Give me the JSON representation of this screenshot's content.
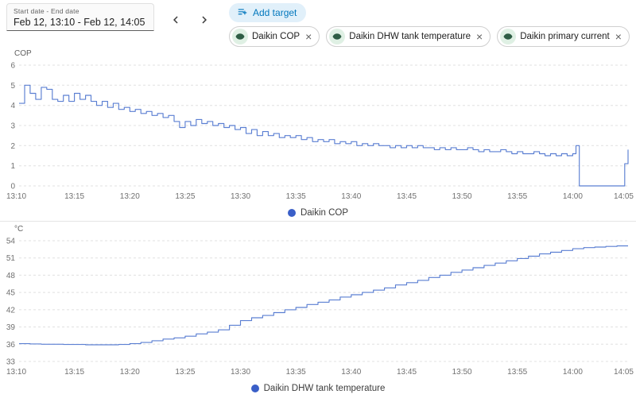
{
  "header": {
    "date_label": "Start date - End date",
    "date_value": "Feb 12, 13:10 - Feb 12, 14:05",
    "add_target_label": "Add target",
    "chips": [
      {
        "label": "Daikin COP"
      },
      {
        "label": "Daikin DHW tank temperature"
      },
      {
        "label": "Daikin primary current"
      }
    ]
  },
  "colors": {
    "series_line": "#5b7fd2",
    "legend_dot": "#3a5fc8",
    "add_target_bg": "#e1f0fa",
    "add_target_fg": "#0277bd",
    "grid": "#e0e0e0"
  },
  "chart_data": [
    {
      "type": "line",
      "step": true,
      "ylabel": "COP",
      "legend": "Daikin COP",
      "ylim": [
        0,
        6
      ],
      "yticks": [
        0,
        1,
        2,
        3,
        4,
        5,
        6
      ],
      "x_range": [
        0,
        55
      ],
      "xtick_minutes": [
        0,
        5,
        10,
        15,
        20,
        25,
        30,
        35,
        40,
        45,
        50,
        55
      ],
      "xtick_labels": [
        "13:10",
        "13:15",
        "13:20",
        "13:25",
        "13:30",
        "13:35",
        "13:40",
        "13:45",
        "13:50",
        "13:55",
        "14:00",
        "14:05"
      ],
      "grid": true,
      "legend_position": "bottom",
      "series": [
        {
          "name": "Daikin COP",
          "x": [
            0,
            0.5,
            1,
            1.5,
            2,
            2.5,
            3,
            3.5,
            4,
            4.5,
            5,
            5.5,
            6,
            6.5,
            7,
            7.5,
            8,
            8.5,
            9,
            9.5,
            10,
            10.5,
            11,
            11.5,
            12,
            12.5,
            13,
            13.5,
            14,
            14.5,
            15,
            15.5,
            16,
            16.5,
            17,
            17.5,
            18,
            18.5,
            19,
            19.5,
            20,
            20.5,
            21,
            21.5,
            22,
            22.5,
            23,
            23.5,
            24,
            24.5,
            25,
            25.5,
            26,
            26.5,
            27,
            27.5,
            28,
            28.5,
            29,
            29.5,
            30,
            30.5,
            31,
            31.5,
            32,
            32.5,
            33,
            33.5,
            34,
            34.5,
            35,
            35.5,
            36,
            36.5,
            37,
            37.5,
            38,
            38.5,
            39,
            39.5,
            40,
            40.5,
            41,
            41.5,
            42,
            42.5,
            43,
            43.5,
            44,
            44.5,
            45,
            45.5,
            46,
            46.5,
            47,
            47.5,
            48,
            48.5,
            49,
            49.5,
            50,
            50.3,
            50.6,
            54,
            54.7,
            55
          ],
          "y": [
            4.1,
            5,
            4.6,
            4.3,
            4.9,
            4.8,
            4.3,
            4.2,
            4.5,
            4.2,
            4.6,
            4.3,
            4.5,
            4.2,
            4,
            4.2,
            3.9,
            4.1,
            3.8,
            3.9,
            3.7,
            3.8,
            3.6,
            3.7,
            3.5,
            3.6,
            3.4,
            3.5,
            3.2,
            2.9,
            3.2,
            3,
            3.3,
            3.1,
            3.2,
            3,
            3.1,
            2.9,
            3,
            2.8,
            2.9,
            2.6,
            2.8,
            2.5,
            2.7,
            2.5,
            2.6,
            2.4,
            2.5,
            2.4,
            2.5,
            2.3,
            2.4,
            2.2,
            2.3,
            2.2,
            2.3,
            2.1,
            2.2,
            2.1,
            2.2,
            2,
            2.1,
            2,
            2.1,
            2,
            2,
            1.9,
            2,
            1.9,
            2,
            1.9,
            2,
            1.9,
            1.9,
            1.8,
            1.9,
            1.8,
            1.9,
            1.8,
            1.8,
            1.9,
            1.8,
            1.7,
            1.8,
            1.7,
            1.7,
            1.8,
            1.7,
            1.6,
            1.7,
            1.6,
            1.6,
            1.7,
            1.6,
            1.5,
            1.6,
            1.5,
            1.6,
            1.5,
            1.6,
            2,
            0,
            0,
            1.1,
            1.8
          ]
        }
      ]
    },
    {
      "type": "line",
      "step": true,
      "ylabel": "°C",
      "legend": "Daikin DHW tank temperature",
      "ylim": [
        33,
        54
      ],
      "yticks": [
        33,
        36,
        39,
        42,
        45,
        48,
        51,
        54
      ],
      "x_range": [
        0,
        55
      ],
      "xtick_minutes": [
        0,
        5,
        10,
        15,
        20,
        25,
        30,
        35,
        40,
        45,
        50,
        55
      ],
      "xtick_labels": [
        "13:10",
        "13:15",
        "13:20",
        "13:25",
        "13:30",
        "13:35",
        "13:40",
        "13:45",
        "13:50",
        "13:55",
        "14:00",
        "14:05"
      ],
      "grid": true,
      "legend_position": "bottom",
      "series": [
        {
          "name": "Daikin DHW tank temperature",
          "x": [
            0,
            1,
            2,
            3,
            4,
            5,
            6,
            7,
            8,
            9,
            10,
            11,
            12,
            13,
            14,
            15,
            16,
            17,
            18,
            19,
            20,
            21,
            22,
            23,
            24,
            25,
            26,
            27,
            28,
            29,
            30,
            31,
            32,
            33,
            34,
            35,
            36,
            37,
            38,
            39,
            40,
            41,
            42,
            43,
            44,
            45,
            46,
            47,
            48,
            49,
            50,
            51,
            52,
            53,
            54,
            55
          ],
          "y": [
            36.1,
            36.05,
            36,
            36,
            35.95,
            35.95,
            35.9,
            35.9,
            35.9,
            35.95,
            36.1,
            36.3,
            36.6,
            36.9,
            37.1,
            37.4,
            37.8,
            38.1,
            38.5,
            39.3,
            40.1,
            40.6,
            41,
            41.5,
            42,
            42.4,
            42.9,
            43.3,
            43.7,
            44.2,
            44.6,
            45,
            45.4,
            45.8,
            46.3,
            46.7,
            47.1,
            47.6,
            48,
            48.5,
            48.9,
            49.3,
            49.7,
            50.1,
            50.5,
            50.9,
            51.3,
            51.7,
            52,
            52.3,
            52.6,
            52.8,
            52.9,
            53,
            53.1,
            53.1
          ]
        }
      ]
    }
  ]
}
